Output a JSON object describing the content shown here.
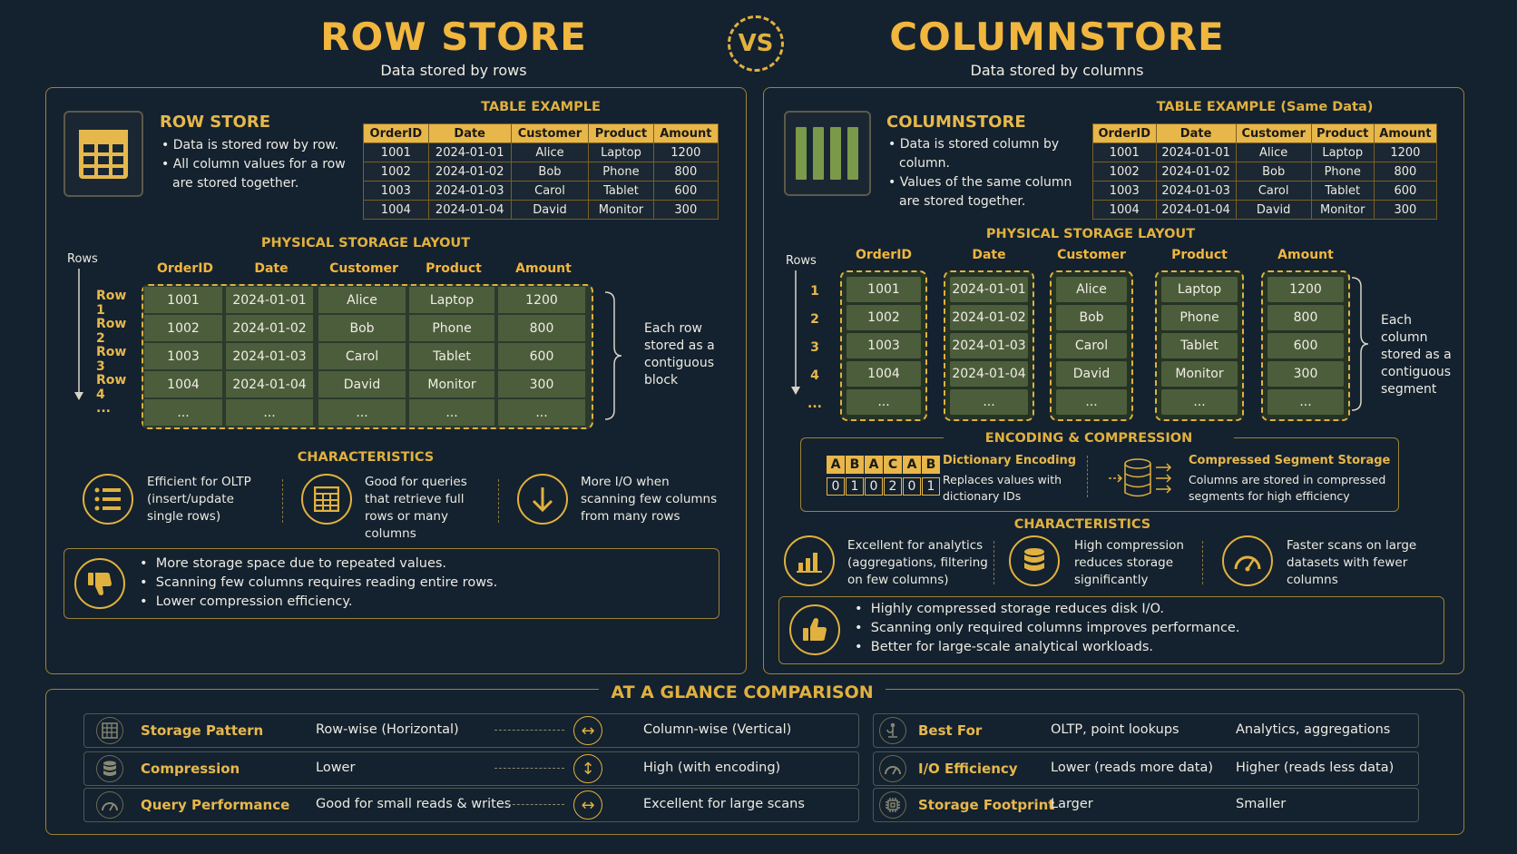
{
  "header": {
    "left_title": "ROW STORE",
    "left_subtitle": "Data stored by rows",
    "vs": "VS",
    "right_title": "COLUMNSTORE",
    "right_subtitle": "Data stored by columns"
  },
  "row_store": {
    "title": "ROW STORE",
    "bullets": [
      "Data is stored row by row.",
      "All column values for a row are stored together."
    ],
    "table_title": "TABLE EXAMPLE",
    "layout_title": "PHYSICAL STORAGE LAYOUT",
    "rows_axis": "Rows",
    "row_labels": [
      "Row 1",
      "Row 2",
      "Row 3",
      "Row 4",
      "..."
    ],
    "note": "Each row stored as a contiguous block",
    "char_title": "CHARACTERISTICS",
    "chars": [
      {
        "text": "Efficient for OLTP (insert/update single rows)",
        "icon": "list-icon"
      },
      {
        "text": "Good for queries that retrieve full rows or many columns",
        "icon": "table-icon"
      },
      {
        "text": "More I/O when scanning few columns from many rows",
        "icon": "arrow-down-icon"
      }
    ],
    "cons": [
      "More storage space due to repeated values.",
      "Scanning few columns requires reading entire rows.",
      "Lower compression efficiency."
    ]
  },
  "columnstore": {
    "title": "COLUMNSTORE",
    "bullets": [
      "Data is stored column by column.",
      "Values of the same column are stored together."
    ],
    "table_title": "TABLE EXAMPLE (Same Data)",
    "layout_title": "PHYSICAL STORAGE LAYOUT",
    "rows_axis": "Rows",
    "row_labels": [
      "1",
      "2",
      "3",
      "4",
      "..."
    ],
    "note": "Each column stored as a contiguous segment",
    "enc_title": "ENCODING & COMPRESSION",
    "dict_letters": [
      "A",
      "B",
      "A",
      "C",
      "A",
      "B"
    ],
    "dict_ids": [
      "0",
      "1",
      "0",
      "2",
      "0",
      "1"
    ],
    "dict_title": "Dictionary Encoding",
    "dict_desc": "Replaces values with dictionary IDs",
    "seg_title": "Compressed Segment Storage",
    "seg_desc": "Columns are stored in compressed segments for high efficiency",
    "char_title": "CHARACTERISTICS",
    "chars": [
      {
        "text": "Excellent for analytics (aggregations, filtering on few columns)",
        "icon": "bar-chart-icon"
      },
      {
        "text": "High compression reduces storage significantly",
        "icon": "database-icon"
      },
      {
        "text": "Faster scans on large datasets with fewer columns",
        "icon": "speedometer-icon"
      }
    ],
    "pros": [
      "Highly compressed storage reduces disk I/O.",
      "Scanning only required columns improves performance.",
      "Better for large-scale analytical workloads."
    ]
  },
  "table": {
    "headers": [
      "OrderID",
      "Date",
      "Customer",
      "Product",
      "Amount"
    ],
    "rows": [
      [
        "1001",
        "2024-01-01",
        "Alice",
        "Laptop",
        "1200"
      ],
      [
        "1002",
        "2024-01-02",
        "Bob",
        "Phone",
        "800"
      ],
      [
        "1003",
        "2024-01-03",
        "Carol",
        "Tablet",
        "600"
      ],
      [
        "1004",
        "2024-01-04",
        "David",
        "Monitor",
        "300"
      ],
      [
        "...",
        "...",
        "...",
        "...",
        "..."
      ]
    ]
  },
  "glance": {
    "title": "AT A GLANCE COMPARISON",
    "left": [
      {
        "label": "Storage Pattern",
        "row": "Row-wise (Horizontal)",
        "col": "Column-wise (Vertical)",
        "icon": "grid-icon"
      },
      {
        "label": "Compression",
        "row": "Lower",
        "col": "High (with encoding)",
        "icon": "database-icon"
      },
      {
        "label": "Query Performance",
        "row": "Good for small reads & writes",
        "col": "Excellent for large scans",
        "icon": "gauge-icon"
      }
    ],
    "right": [
      {
        "label": "Best For",
        "row": "OLTP, point lookups",
        "col": "Analytics, aggregations",
        "icon": "scale-icon"
      },
      {
        "label": "I/O Efficiency",
        "row": "Lower (reads more data)",
        "col": "Higher (reads less data)",
        "icon": "gauge-icon"
      },
      {
        "label": "Storage Footprint",
        "row": "Larger",
        "col": "Smaller",
        "icon": "chip-icon"
      }
    ]
  }
}
